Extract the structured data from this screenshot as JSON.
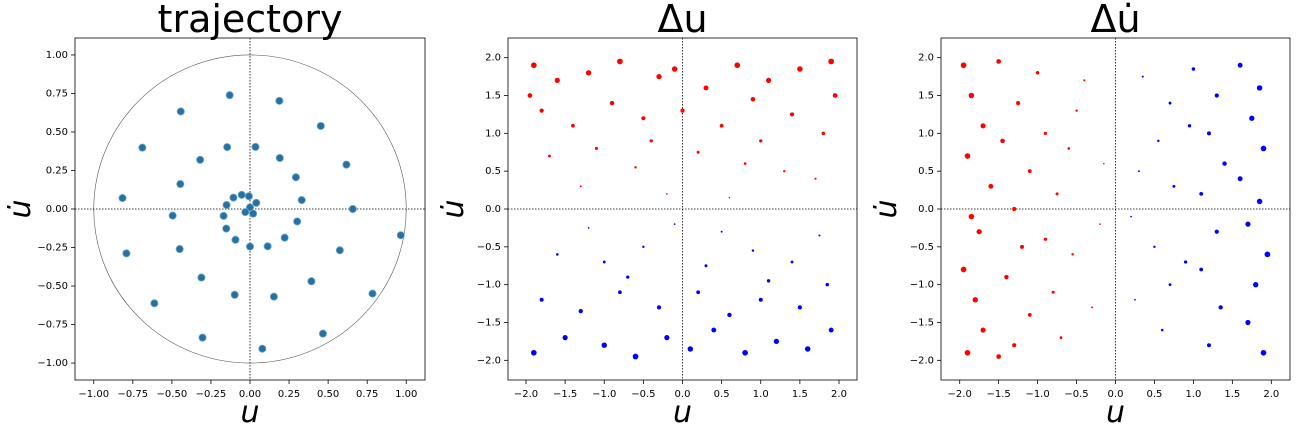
{
  "chart_data": [
    {
      "type": "scatter",
      "title": "trajectory",
      "x_label": "u",
      "y_label": "u̇",
      "xlim": [
        -1.12,
        1.12
      ],
      "ylim": [
        -1.11,
        1.11
      ],
      "xticks": [
        {
          "value": -1,
          "label": "−1.00"
        },
        {
          "value": -0.75,
          "label": "−0.75"
        },
        {
          "value": -0.5,
          "label": "−0.50"
        },
        {
          "value": -0.25,
          "label": "−0.25"
        },
        {
          "value": 0,
          "label": "0.00"
        },
        0.25,
        {
          "value": 0.5,
          "label": "0.50"
        },
        0.75,
        {
          "value": 1,
          "label": "1.00"
        }
      ],
      "yticks": [
        {
          "value": -1,
          "label": "−1.00"
        },
        {
          "value": -0.75,
          "label": "−0.75"
        },
        {
          "value": -0.5,
          "label": "−0.50"
        },
        {
          "value": -0.25,
          "label": "−0.25"
        },
        {
          "value": 0,
          "label": "0.00"
        },
        0.25,
        {
          "value": 0.5,
          "label": "0.50"
        },
        0.75,
        {
          "value": 1,
          "label": "1.00"
        }
      ],
      "zero_lines": true,
      "circle_radius": 1,
      "size_by": "none",
      "series": [
        {
          "color": "#2b6f9e",
          "x": [
            0.965,
            0.784,
            0.467,
            0.079,
            -0.304,
            -0.612,
            -0.791,
            -0.816,
            -0.689,
            -0.443,
            -0.13,
            0.188,
            0.453,
            0.617,
            0.658,
            0.575,
            0.393,
            0.153,
            -0.098,
            -0.311,
            -0.45,
            -0.495,
            -0.446,
            -0.319,
            -0.146,
            0.035,
            0.191,
            0.294,
            0.331,
            0.302,
            0.222,
            0.113,
            0,
            -0.093,
            -0.152,
            -0.169,
            -0.15,
            -0.106,
            -0.053,
            -0.007,
            0.02,
            0,
            -0.03,
            0.04
          ],
          "values": [
            -0.17,
            -0.549,
            -0.809,
            -0.907,
            -0.835,
            -0.612,
            -0.288,
            0.071,
            0.398,
            0.633,
            0.739,
            0.702,
            0.539,
            0.288,
            0,
            -0.268,
            -0.469,
            -0.569,
            -0.557,
            -0.445,
            -0.26,
            -0.043,
            0.162,
            0.319,
            0.402,
            0.403,
            0.331,
            0.206,
            0.058,
            -0.081,
            -0.186,
            -0.242,
            -0.244,
            -0.2,
            -0.127,
            -0.045,
            0.026,
            0.074,
            0.092,
            0.083,
            -0.03,
            0.01,
            -0.02,
            0.04
          ]
        }
      ]
    },
    {
      "type": "scatter",
      "title": "Δu",
      "x_label": "u",
      "y_label": "u̇",
      "xlim": [
        -2.23,
        2.23
      ],
      "ylim": [
        -2.26,
        2.26
      ],
      "xticks": [
        {
          "value": -2,
          "label": "−2.0"
        },
        {
          "value": -1.5,
          "label": "−1.5"
        },
        {
          "value": -1,
          "label": "−1.0"
        },
        {
          "value": -0.5,
          "label": "−0.5"
        },
        {
          "value": 0,
          "label": "0.0"
        },
        0.5,
        {
          "value": 1,
          "label": "1.0"
        },
        1.5,
        {
          "value": 2,
          "label": "2.0"
        }
      ],
      "yticks": [
        {
          "value": -2,
          "label": "−2.0"
        },
        {
          "value": -1.5,
          "label": "−1.5"
        },
        {
          "value": -1,
          "label": "−1.0"
        },
        {
          "value": -0.5,
          "label": "−0.5"
        },
        {
          "value": 0,
          "label": "0.0"
        },
        0.5,
        {
          "value": 1,
          "label": "1.0"
        },
        1.5,
        {
          "value": 2,
          "label": "2.0"
        }
      ],
      "zero_lines": true,
      "size_by": "y",
      "series": [
        {
          "color": "#ff0000",
          "x": [
            -1.9,
            -1.6,
            -1.2,
            -0.8,
            -0.3,
            -0.1,
            0.3,
            0.7,
            1.1,
            1.5,
            1.9,
            -1.8,
            -1.4,
            -0.9,
            -0.5,
            0.0,
            0.5,
            0.9,
            1.4,
            1.8,
            -1.7,
            -1.1,
            -0.6,
            0.2,
            0.8,
            1.3,
            1.7,
            -1.3,
            -0.2,
            0.6,
            1.0,
            -0.4,
            1.95,
            -1.95
          ],
          "values": [
            1.9,
            1.7,
            1.8,
            1.95,
            1.75,
            1.85,
            1.6,
            1.9,
            1.7,
            1.85,
            1.95,
            1.3,
            1.1,
            1.4,
            1.2,
            1.3,
            1.1,
            1.45,
            1.25,
            1.0,
            0.7,
            0.8,
            0.55,
            0.75,
            0.6,
            0.5,
            0.4,
            0.3,
            0.2,
            0.15,
            0.9,
            0.9,
            1.5,
            1.5
          ]
        },
        {
          "color": "#0000ff",
          "x": [
            -1.9,
            -1.5,
            -1.0,
            -0.6,
            -0.2,
            0.1,
            0.4,
            0.8,
            1.2,
            1.6,
            1.9,
            -1.8,
            -1.3,
            -0.8,
            -0.3,
            0.2,
            0.6,
            1.0,
            1.5,
            1.85,
            -1.6,
            -1.0,
            -0.5,
            0.3,
            0.9,
            1.4,
            1.75,
            -1.2,
            -0.1,
            0.5,
            1.1,
            -0.7
          ],
          "values": [
            -1.9,
            -1.7,
            -1.8,
            -1.95,
            -1.7,
            -1.85,
            -1.6,
            -1.9,
            -1.75,
            -1.85,
            -1.6,
            -1.2,
            -1.35,
            -1.1,
            -1.3,
            -1.1,
            -1.4,
            -1.2,
            -1.3,
            -1.0,
            -0.6,
            -0.7,
            -0.5,
            -0.75,
            -0.55,
            -0.7,
            -0.35,
            -0.25,
            -0.2,
            -0.3,
            -0.95,
            -0.9
          ]
        }
      ]
    },
    {
      "type": "scatter",
      "title": "Δu̇",
      "x_label": "u",
      "y_label": "u̇",
      "xlim": [
        -2.24,
        2.24
      ],
      "ylim": [
        -2.26,
        2.26
      ],
      "xticks": [
        {
          "value": -2,
          "label": "−2.0"
        },
        {
          "value": -1.5,
          "label": "−1.5"
        },
        {
          "value": -1,
          "label": "−1.0"
        },
        {
          "value": -0.5,
          "label": "−0.5"
        },
        {
          "value": 0,
          "label": "0.0"
        },
        0.5,
        {
          "value": 1,
          "label": "1.0"
        },
        1.5,
        {
          "value": 2,
          "label": "2.0"
        }
      ],
      "yticks": [
        {
          "value": -2,
          "label": "−2.0"
        },
        {
          "value": -1.5,
          "label": "−1.5"
        },
        {
          "value": -1,
          "label": "−1.0"
        },
        {
          "value": -0.5,
          "label": "−0.5"
        },
        {
          "value": 0,
          "label": "0.0"
        },
        0.5,
        {
          "value": 1,
          "label": "1.0"
        },
        1.5,
        {
          "value": 2,
          "label": "2.0"
        }
      ],
      "zero_lines": true,
      "size_by": "x",
      "series": [
        {
          "color": "#ff0000",
          "x": [
            -1.9,
            -1.7,
            -1.8,
            -1.95,
            -1.75,
            -1.85,
            -1.6,
            -1.9,
            -1.7,
            -1.85,
            -1.95,
            -1.3,
            -1.1,
            -1.4,
            -1.2,
            -1.3,
            -1.1,
            -1.45,
            -1.25,
            -1.0,
            -0.7,
            -0.8,
            -0.55,
            -0.75,
            -0.6,
            -0.5,
            -0.4,
            -0.3,
            -0.2,
            -0.15,
            -0.9,
            -0.9,
            -1.5,
            -1.5
          ],
          "values": [
            -1.9,
            -1.6,
            -1.2,
            -0.8,
            -0.3,
            -0.1,
            0.3,
            0.7,
            1.1,
            1.5,
            1.9,
            -1.8,
            -1.4,
            -0.9,
            -0.5,
            0.0,
            0.5,
            0.9,
            1.4,
            1.8,
            -1.7,
            -1.1,
            -0.6,
            0.2,
            0.8,
            1.3,
            1.7,
            -1.3,
            -0.2,
            0.6,
            1.0,
            -0.4,
            1.95,
            -1.95
          ]
        },
        {
          "color": "#0000ff",
          "x": [
            1.9,
            1.7,
            1.8,
            1.95,
            1.7,
            1.85,
            1.6,
            1.9,
            1.75,
            1.85,
            1.6,
            1.2,
            1.35,
            1.1,
            1.3,
            1.1,
            1.4,
            1.2,
            1.3,
            1.0,
            0.6,
            0.7,
            0.5,
            0.75,
            0.55,
            0.7,
            0.35,
            0.25,
            0.2,
            0.3,
            0.95,
            0.9
          ],
          "values": [
            -1.9,
            -1.5,
            -1.0,
            -0.6,
            -0.2,
            0.1,
            0.4,
            0.8,
            1.2,
            1.6,
            1.9,
            -1.8,
            -1.3,
            -0.8,
            -0.3,
            0.2,
            0.6,
            1.0,
            1.5,
            1.85,
            -1.6,
            -1.0,
            -0.5,
            0.3,
            0.9,
            1.4,
            1.75,
            -1.2,
            -0.1,
            0.5,
            1.1,
            -0.7
          ]
        }
      ]
    }
  ]
}
